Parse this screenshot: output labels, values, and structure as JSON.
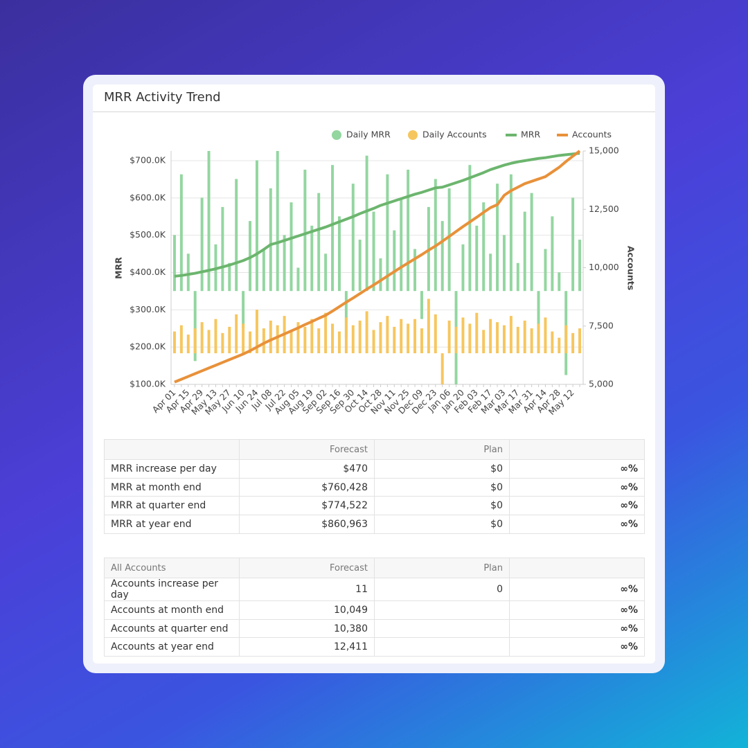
{
  "chart_data": {
    "type": "combo",
    "title": "MRR Activity Trend",
    "y_label": "MRR",
    "y2_label": "Accounts",
    "categories": [
      "Apr 01",
      null,
      "Apr 15",
      null,
      "Apr 29",
      null,
      "May 13",
      null,
      "May 27",
      null,
      "Jun 10",
      null,
      "Jun 24",
      null,
      "Jul 08",
      null,
      "Jul 22",
      null,
      "Aug 05",
      null,
      "Aug 19",
      null,
      "Sep 02",
      null,
      "Sep 16",
      null,
      "Sep 30",
      null,
      "Oct 14",
      null,
      "Oct 28",
      null,
      "Nov 11",
      null,
      "Nov 25",
      null,
      "Dec 09",
      null,
      "Dec 23",
      null,
      "Jan 06",
      null,
      "Jan 20",
      null,
      "Feb 03",
      null,
      "Feb 17",
      null,
      "Mar 03",
      null,
      "Mar 17",
      null,
      "Mar 31",
      null,
      "Apr 14",
      null,
      "Apr 28",
      null,
      "May 12",
      null
    ],
    "ylim": [
      100000,
      726000
    ],
    "yticks": [
      {
        "value": 100000,
        "label": "$100.0K"
      },
      {
        "value": 200000,
        "label": "$200.0K"
      },
      {
        "value": 300000,
        "label": "$300.0K"
      },
      {
        "value": 400000,
        "label": "$400.0K"
      },
      {
        "value": 500000,
        "label": "$500.0K"
      },
      {
        "value": 600000,
        "label": "$600.0K"
      },
      {
        "value": 700000,
        "label": "$700.0K"
      }
    ],
    "y2lim": [
      5000,
      15000
    ],
    "y2ticks": [
      {
        "value": 5000,
        "label": "5,000"
      },
      {
        "value": 7500,
        "label": "7,500"
      },
      {
        "value": 10000,
        "label": "10,000"
      },
      {
        "value": 12500,
        "label": "12,500"
      },
      {
        "value": 15000,
        "label": "15,000"
      }
    ],
    "grid": true,
    "legend": "top-right",
    "series": [
      {
        "name": "Daily MRR",
        "type": "bar",
        "color": "#93d6a0",
        "ylim": [
          -20000,
          30000
        ],
        "values": [
          12000,
          25000,
          8000,
          -15000,
          20000,
          30000,
          10000,
          18000,
          6000,
          24000,
          -8000,
          15000,
          28000,
          9000,
          22000,
          30000,
          12000,
          19000,
          5000,
          26000,
          14000,
          21000,
          8000,
          27000,
          16000,
          -10000,
          23000,
          11000,
          29000,
          17000,
          7000,
          25000,
          13000,
          20000,
          26000,
          9000,
          -6000,
          18000,
          24000,
          15000,
          22000,
          -20000,
          10000,
          27000,
          14000,
          19000,
          8000,
          23000,
          12000,
          25000,
          6000,
          17000,
          21000,
          -12000,
          9000,
          16000,
          4000,
          -18000,
          20000,
          11000
        ]
      },
      {
        "name": "Daily Accounts",
        "type": "bar",
        "color": "#f6c65e",
        "ylim": [
          -20,
          130
        ],
        "values": [
          14,
          18,
          12,
          16,
          20,
          15,
          22,
          13,
          17,
          25,
          19,
          14,
          28,
          16,
          21,
          18,
          24,
          15,
          20,
          17,
          22,
          16,
          26,
          19,
          14,
          23,
          18,
          21,
          27,
          15,
          20,
          24,
          17,
          22,
          19,
          22,
          16,
          35,
          25,
          -20,
          21,
          17,
          23,
          19,
          26,
          15,
          22,
          20,
          18,
          24,
          17,
          21,
          16,
          19,
          23,
          14,
          10,
          18,
          13,
          16
        ]
      },
      {
        "name": "MRR",
        "type": "line",
        "color": "#6cb56e",
        "values": [
          390000,
          392000,
          395000,
          398000,
          402000,
          406000,
          410000,
          415000,
          420000,
          426000,
          432000,
          440000,
          450000,
          462000,
          475000,
          480000,
          486000,
          492000,
          498000,
          504000,
          510000,
          516000,
          522000,
          529000,
          536000,
          543000,
          550000,
          558000,
          565000,
          572000,
          580000,
          586000,
          592000,
          598000,
          604000,
          610000,
          615000,
          621000,
          627000,
          629000,
          635000,
          641000,
          647000,
          654000,
          661000,
          668000,
          676000,
          682000,
          688000,
          693000,
          697000,
          700000,
          703000,
          706000,
          708000,
          711000,
          714000,
          716000,
          718000,
          720000
        ]
      },
      {
        "name": "Accounts",
        "type": "line",
        "color": "#e8913a",
        "axis": "y2",
        "values": [
          5100,
          5220,
          5340,
          5460,
          5580,
          5700,
          5820,
          5940,
          6060,
          6180,
          6300,
          6440,
          6600,
          6760,
          6900,
          7030,
          7160,
          7290,
          7420,
          7560,
          7690,
          7830,
          7960,
          8140,
          8330,
          8520,
          8700,
          8890,
          9080,
          9260,
          9450,
          9640,
          9830,
          10020,
          10200,
          10380,
          10560,
          10750,
          10930,
          11130,
          11340,
          11550,
          11760,
          11960,
          12160,
          12370,
          12570,
          12700,
          13100,
          13300,
          13450,
          13600,
          13700,
          13800,
          13900,
          14100,
          14300,
          14550,
          14780,
          15000
        ]
      }
    ]
  },
  "mrr_table": {
    "columns": [
      "Forecast",
      "Plan"
    ],
    "rows": [
      {
        "label": "MRR increase per day",
        "forecast": "$470",
        "plan": "$0",
        "change": "∞%"
      },
      {
        "label": "MRR at month end",
        "forecast": "$760,428",
        "plan": "$0",
        "change": "∞%"
      },
      {
        "label": "MRR at quarter end",
        "forecast": "$774,522",
        "plan": "$0",
        "change": "∞%"
      },
      {
        "label": "MRR at year end",
        "forecast": "$860,963",
        "plan": "$0",
        "change": "∞%"
      }
    ]
  },
  "accounts_table": {
    "title": "All Accounts",
    "columns": [
      "Forecast",
      "Plan"
    ],
    "rows": [
      {
        "label": "Accounts increase per day",
        "forecast": "11",
        "plan": "0",
        "change": "∞%"
      },
      {
        "label": "Accounts at month end",
        "forecast": "10,049",
        "change": "∞%"
      },
      {
        "label": "Accounts at quarter end",
        "forecast": "10,380",
        "change": "∞%"
      },
      {
        "label": "Accounts at year end",
        "forecast": "12,411",
        "change": "∞%"
      }
    ]
  }
}
